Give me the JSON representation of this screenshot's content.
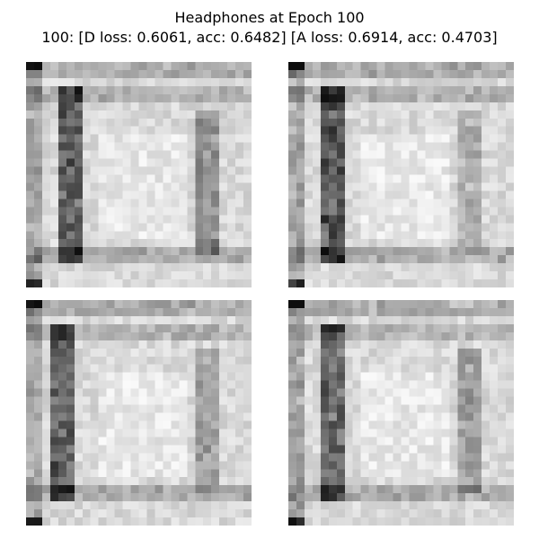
{
  "figure": {
    "title_line1": "Headphones at Epoch 100",
    "title_line2": "100: [D loss: 0.6061, acc: 0.6482]  [A loss: 0.6914, acc: 0.4703]"
  },
  "samples": [
    {
      "name": "generated-sample-1",
      "grid": 28,
      "colormap": "gray_r"
    },
    {
      "name": "generated-sample-2",
      "grid": 28,
      "colormap": "gray_r"
    },
    {
      "name": "generated-sample-3",
      "grid": 28,
      "colormap": "gray_r"
    },
    {
      "name": "generated-sample-4",
      "grid": 28,
      "colormap": "gray_r"
    }
  ]
}
